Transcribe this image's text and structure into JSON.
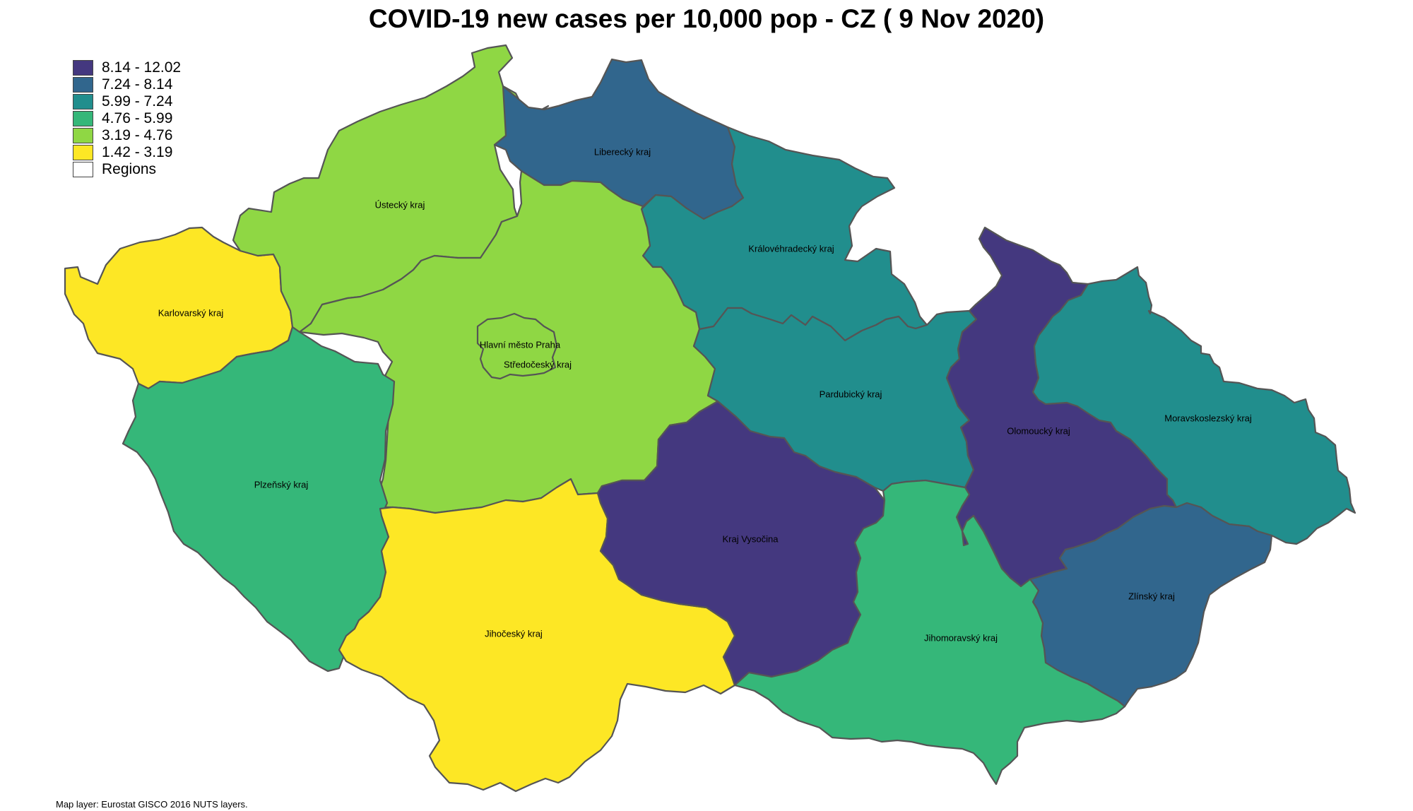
{
  "title": "COVID-19 new cases per 10,000 pop - CZ ( 9 Nov 2020)",
  "source_note": "Map layer: Eurostat GISCO 2016 NUTS layers.",
  "legend": {
    "items": [
      {
        "label": "8.14 - 12.02",
        "color": "#44387f"
      },
      {
        "label": "7.24 - 8.14",
        "color": "#31668d"
      },
      {
        "label": "5.99 - 7.24",
        "color": "#218e8d"
      },
      {
        "label": "4.76 - 5.99",
        "color": "#35b779"
      },
      {
        "label": "3.19 - 4.76",
        "color": "#8fd744"
      },
      {
        "label": "1.42 - 3.19",
        "color": "#fde725"
      },
      {
        "label": "Regions",
        "color": "#ffffff"
      }
    ]
  },
  "regions": [
    {
      "id": "karlovarsky",
      "name": "Karlovarský kraj",
      "color": "#fde725"
    },
    {
      "id": "ustecky",
      "name": "Ústecký kraj",
      "color": "#8fd744"
    },
    {
      "id": "liberecky",
      "name": "Liberecký kraj",
      "color": "#31668d"
    },
    {
      "id": "kralovehradecky",
      "name": "Královéhradecký kraj",
      "color": "#218e8d"
    },
    {
      "id": "stredocesky",
      "name": "Středočeský kraj",
      "color": "#8fd744"
    },
    {
      "id": "praha",
      "name": "Hlavní město Praha",
      "color": "#8fd744"
    },
    {
      "id": "plzensky",
      "name": "Plzeňský kraj",
      "color": "#35b779"
    },
    {
      "id": "jihocesky",
      "name": "Jihočeský kraj",
      "color": "#fde725"
    },
    {
      "id": "vysocina",
      "name": "Kraj Vysočina",
      "color": "#44387f"
    },
    {
      "id": "pardubicky",
      "name": "Pardubický kraj",
      "color": "#218e8d"
    },
    {
      "id": "olomoucky",
      "name": "Olomoucký kraj",
      "color": "#44387f"
    },
    {
      "id": "moravskoslezsky",
      "name": "Moravskoslezský kraj",
      "color": "#218e8d"
    },
    {
      "id": "zlinsky",
      "name": "Zlínský kraj",
      "color": "#31668d"
    },
    {
      "id": "jihomoravsky",
      "name": "Jihomoravský kraj",
      "color": "#35b779"
    }
  ]
}
